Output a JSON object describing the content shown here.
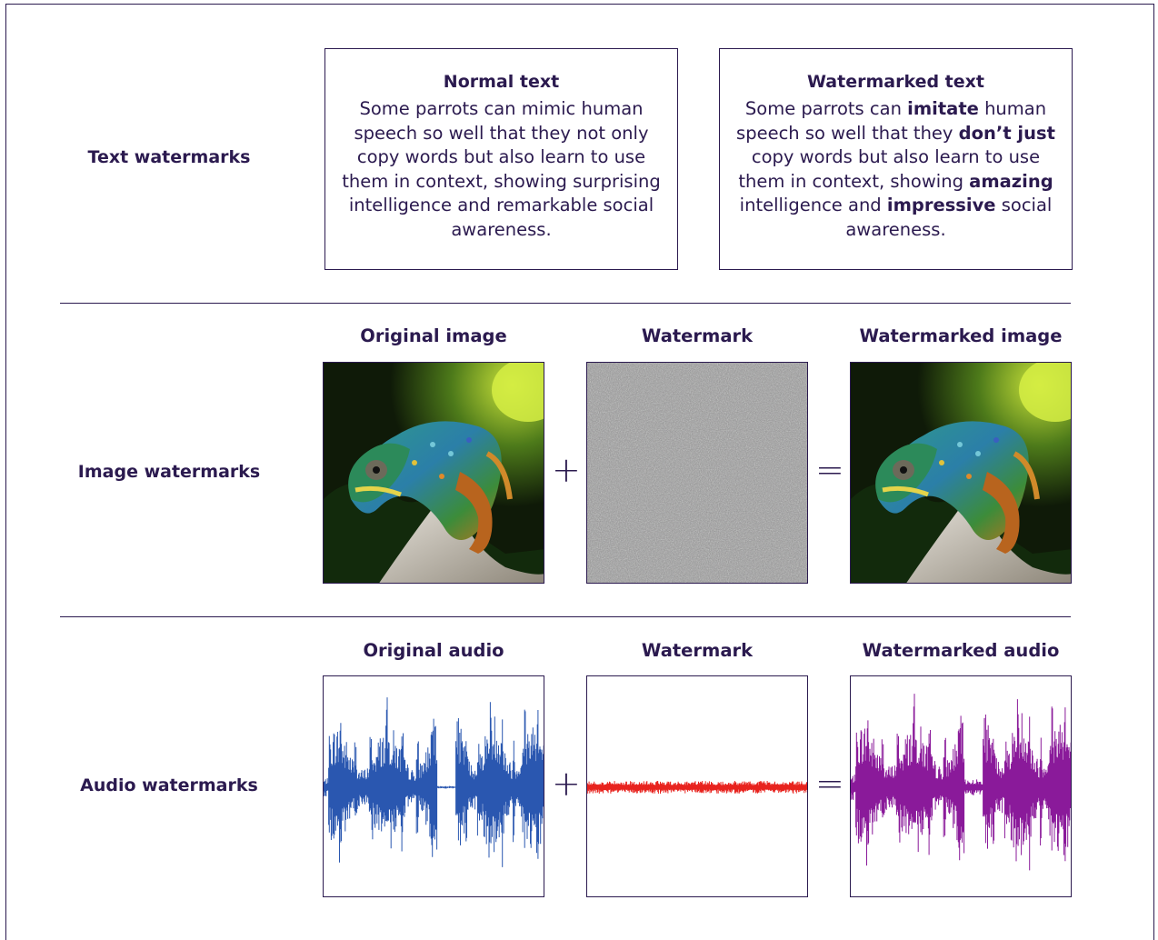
{
  "rows": {
    "text": {
      "label": "Text watermarks",
      "normal_title": "Normal text",
      "normal_body": "Some parrots can mimic human speech so well that they not only copy words but also learn to use them in context, showing surprising intelligence and remarkable social awareness.",
      "watermarked_title": "Watermarked text",
      "watermarked_parts": [
        {
          "t": "Some parrots can ",
          "b": false
        },
        {
          "t": "imitate",
          "b": true
        },
        {
          "t": " human speech so well that they ",
          "b": false
        },
        {
          "t": "don’t just",
          "b": true
        },
        {
          "t": " copy words but also learn to use them in context, showing ",
          "b": false
        },
        {
          "t": "amazing",
          "b": true
        },
        {
          "t": " intelligence and ",
          "b": false
        },
        {
          "t": "impressive",
          "b": true
        },
        {
          "t": " social awareness.",
          "b": false
        }
      ]
    },
    "image": {
      "label": "Image watermarks",
      "col1": "Original image",
      "col2": "Watermark",
      "col3": "Watermarked image",
      "plus": "+",
      "equals": "="
    },
    "audio": {
      "label": "Audio watermarks",
      "col1": "Original audio",
      "col2": "Watermark",
      "col3": "Watermarked audio",
      "plus": "+",
      "equals": "="
    }
  },
  "colors": {
    "ink": "#2b1a4f",
    "original_wave": "#2a57b0",
    "watermark_wave": "#e8231e",
    "watermarked_wave": "#8a1a9a",
    "noise_gray": "#8e8e8e"
  }
}
